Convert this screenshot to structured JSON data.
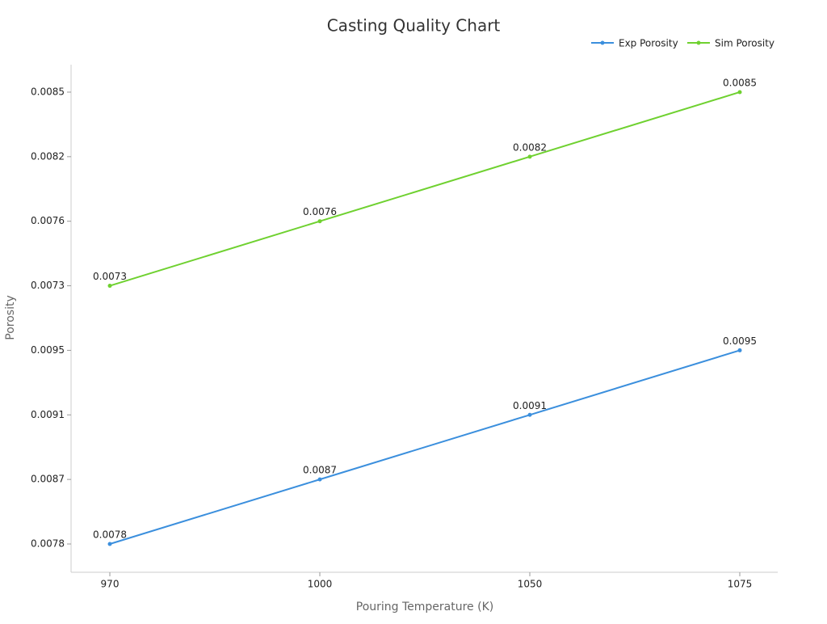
{
  "chart_data": {
    "type": "line",
    "title": "Casting Quality Chart",
    "x_label": "Pouring Temperature (K)",
    "y_label": "Porosity",
    "categories": [
      "970",
      "1000",
      "1050",
      "1075"
    ],
    "y_categories": [
      0.0078,
      0.0087,
      0.0091,
      0.0095,
      0.0073,
      0.0076,
      0.0082,
      0.0085
    ],
    "series": [
      {
        "name": "Exp Porosity",
        "color": "#3b8fdd",
        "values": [
          0.0078,
          0.0087,
          0.0091,
          0.0095
        ]
      },
      {
        "name": "Sim Porosity",
        "color": "#6fd130",
        "values": [
          0.0073,
          0.0076,
          0.0082,
          0.0085
        ]
      }
    ]
  }
}
